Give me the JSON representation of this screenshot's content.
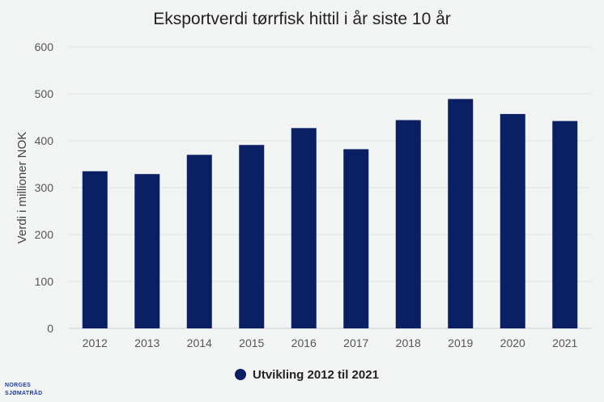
{
  "chart_data": {
    "type": "bar",
    "title": "Eksportverdi tørrfisk hittil i år siste 10 år",
    "ylabel": "Verdi i millioner NOK",
    "xlabel": "",
    "categories": [
      "2012",
      "2013",
      "2014",
      "2015",
      "2016",
      "2017",
      "2018",
      "2019",
      "2020",
      "2021"
    ],
    "series": [
      {
        "name": "Utvikling 2012 til 2021",
        "values": [
          335,
          329,
          370,
          391,
          427,
          382,
          444,
          489,
          457,
          442
        ],
        "color": "#0b1f63"
      }
    ],
    "ylim": [
      0,
      600
    ],
    "yticks": [
      0,
      100,
      200,
      300,
      400,
      500,
      600
    ],
    "grid": true,
    "legend_position": "bottom-center"
  },
  "logo": {
    "line1": "NORGES",
    "line2": "SJØMATRÅD",
    "color": "#1f3f9a"
  }
}
